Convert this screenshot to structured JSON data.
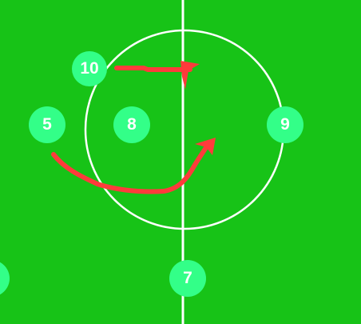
{
  "colors": {
    "pitch": "#17c317",
    "lines": "#ffffff",
    "player": "#33ff88",
    "arrow": "#ff3b3b"
  },
  "players": [
    {
      "number": "10",
      "icon": "player-marker"
    },
    {
      "number": "5",
      "icon": "player-marker"
    },
    {
      "number": "8",
      "icon": "player-marker"
    },
    {
      "number": "9",
      "icon": "player-marker"
    },
    {
      "number": "7",
      "icon": "player-marker"
    },
    {
      "number": "",
      "icon": "player-marker"
    }
  ],
  "arrows": [
    {
      "from": "10",
      "shape": "straight",
      "icon": "arrow-icon"
    },
    {
      "from": "5",
      "shape": "curved",
      "icon": "arrow-icon"
    }
  ]
}
